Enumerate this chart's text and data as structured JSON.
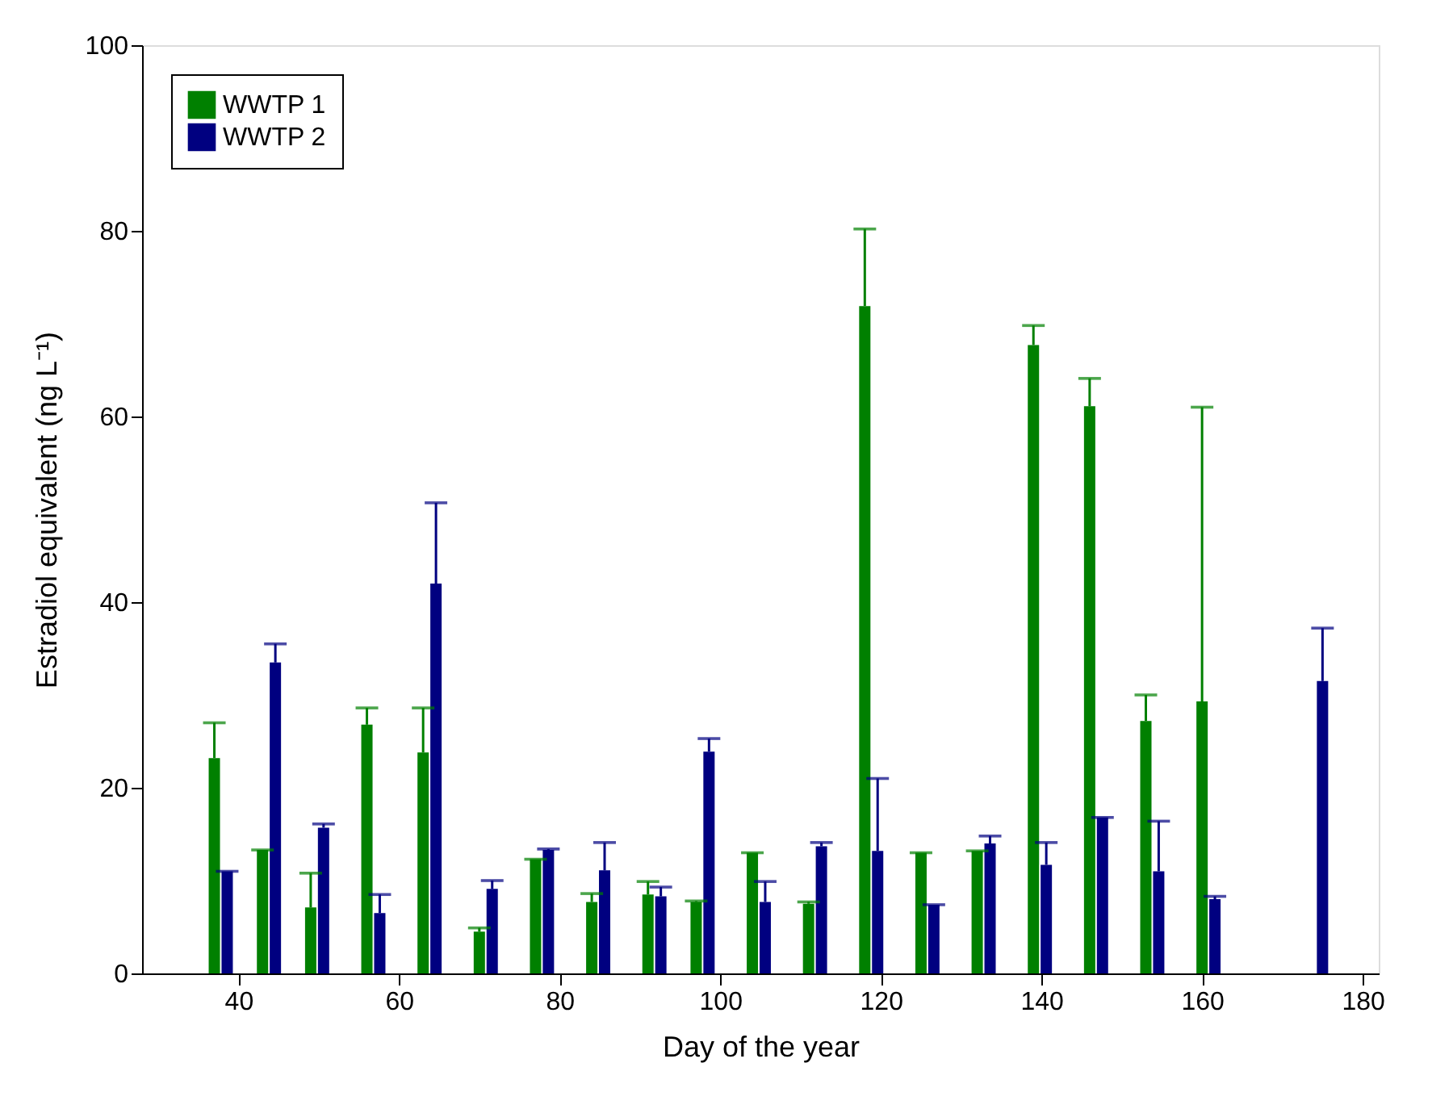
{
  "chart_data": {
    "type": "bar",
    "xlabel": "Day of the year",
    "ylabel": "Estradiol equivalent (ng L⁻¹)",
    "xlim": [
      28,
      182
    ],
    "xticks": [
      40,
      60,
      80,
      100,
      120,
      140,
      160,
      180
    ],
    "ylim": [
      0,
      100
    ],
    "yticks": [
      0,
      20,
      40,
      60,
      80,
      100
    ],
    "grid": false,
    "legend": "top left",
    "series": [
      {
        "name": "WWTP 1",
        "color": "#008000",
        "x": [
          37,
          43,
          49,
          56,
          63,
          70,
          77,
          84,
          91,
          97,
          104,
          111,
          118,
          125,
          132,
          139,
          146,
          153,
          160
        ],
        "values": [
          23.2,
          13.3,
          7.1,
          26.8,
          23.8,
          4.5,
          12.3,
          7.7,
          8.5,
          7.7,
          13.0,
          7.5,
          71.9,
          13.0,
          13.2,
          67.7,
          61.1,
          27.2,
          29.3
        ],
        "errors": [
          [
            23.2,
            27.0
          ],
          [
            13.3,
            13.3
          ],
          [
            7.1,
            10.8
          ],
          [
            26.8,
            28.6
          ],
          [
            23.8,
            28.6
          ],
          [
            4.5,
            4.9
          ],
          [
            12.3,
            12.3
          ],
          [
            7.7,
            8.6
          ],
          [
            8.5,
            9.9
          ],
          [
            7.7,
            7.8
          ],
          [
            13.0,
            13.0
          ],
          [
            7.5,
            7.7
          ],
          [
            71.9,
            80.2
          ],
          [
            13.0,
            13.0
          ],
          [
            13.2,
            13.2
          ],
          [
            67.7,
            69.8
          ],
          [
            61.1,
            64.1
          ],
          [
            27.2,
            30.0
          ],
          [
            29.3,
            61.0
          ]
        ]
      },
      {
        "name": "WWTP 2",
        "color": "#000080",
        "x": [
          38.6,
          44.6,
          50.6,
          57.6,
          64.6,
          71.6,
          78.6,
          85.6,
          92.6,
          98.6,
          105.6,
          112.6,
          119.6,
          126.6,
          133.6,
          140.6,
          147.6,
          154.6,
          161.6,
          175
        ],
        "values": [
          11.0,
          33.5,
          15.7,
          6.5,
          42.0,
          9.1,
          13.3,
          11.1,
          8.3,
          23.9,
          7.7,
          13.7,
          13.2,
          7.4,
          14.0,
          11.7,
          16.8,
          11.0,
          8.0,
          31.5
        ],
        "errors": [
          [
            11.0,
            11.0
          ],
          [
            33.5,
            35.5
          ],
          [
            15.7,
            16.1
          ],
          [
            6.5,
            8.5
          ],
          [
            42.0,
            50.7
          ],
          [
            9.1,
            10.0
          ],
          [
            13.3,
            13.4
          ],
          [
            11.1,
            14.1
          ],
          [
            8.3,
            9.3
          ],
          [
            23.9,
            25.3
          ],
          [
            7.7,
            9.9
          ],
          [
            13.7,
            14.1
          ],
          [
            13.2,
            21.0
          ],
          [
            7.4,
            7.4
          ],
          [
            14.0,
            14.8
          ],
          [
            11.7,
            14.1
          ],
          [
            16.8,
            16.8
          ],
          [
            11.0,
            16.4
          ],
          [
            8.0,
            8.3
          ],
          [
            31.5,
            37.2
          ]
        ]
      }
    ]
  }
}
